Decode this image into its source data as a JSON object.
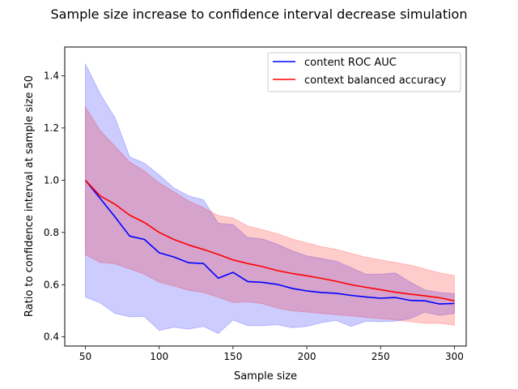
{
  "chart_data": {
    "type": "line",
    "title": "Sample size increase to confidence interval decrease simulation",
    "xlabel": "Sample size",
    "ylabel": "Ratio to confidence interval at sample size 50",
    "xlim": [
      36,
      308
    ],
    "ylim": [
      0.365,
      1.51
    ],
    "xticks": [
      50,
      100,
      150,
      200,
      250,
      300
    ],
    "yticks": [
      0.4,
      0.6,
      0.8,
      1.0,
      1.2,
      1.4
    ],
    "xtick_labels": [
      "50",
      "100",
      "150",
      "200",
      "250",
      "300"
    ],
    "ytick_labels": [
      "0.4",
      "0.6",
      "0.8",
      "1.0",
      "1.2",
      "1.4"
    ],
    "grid": false,
    "legend_position": "top-right",
    "x": [
      50,
      60,
      70,
      80,
      90,
      100,
      110,
      120,
      130,
      140,
      150,
      160,
      170,
      180,
      190,
      200,
      210,
      220,
      230,
      240,
      250,
      260,
      270,
      280,
      290,
      300
    ],
    "series": [
      {
        "name": "content ROC AUC",
        "color": "#0000ff",
        "band_color": "#0000ff",
        "values": [
          1.0,
          0.93,
          0.86,
          0.786,
          0.773,
          0.722,
          0.706,
          0.684,
          0.681,
          0.625,
          0.647,
          0.612,
          0.609,
          0.601,
          0.586,
          0.576,
          0.57,
          0.567,
          0.559,
          0.553,
          0.548,
          0.551,
          0.54,
          0.538,
          0.526,
          0.528
        ],
        "upper": [
          1.445,
          1.33,
          1.24,
          1.09,
          1.065,
          1.02,
          0.97,
          0.94,
          0.925,
          0.835,
          0.83,
          0.78,
          0.775,
          0.755,
          0.73,
          0.71,
          0.7,
          0.69,
          0.665,
          0.64,
          0.64,
          0.645,
          0.61,
          0.58,
          0.57,
          0.565
        ],
        "lower": [
          0.552,
          0.53,
          0.49,
          0.477,
          0.478,
          0.425,
          0.437,
          0.43,
          0.44,
          0.413,
          0.465,
          0.443,
          0.443,
          0.447,
          0.435,
          0.44,
          0.455,
          0.463,
          0.44,
          0.46,
          0.458,
          0.46,
          0.47,
          0.495,
          0.482,
          0.49
        ]
      },
      {
        "name": "context balanced accuracy",
        "color": "#ff0000",
        "band_color": "#ff0000",
        "values": [
          1.0,
          0.94,
          0.908,
          0.866,
          0.838,
          0.8,
          0.773,
          0.752,
          0.735,
          0.716,
          0.695,
          0.681,
          0.669,
          0.654,
          0.643,
          0.634,
          0.624,
          0.613,
          0.6,
          0.59,
          0.581,
          0.571,
          0.564,
          0.557,
          0.55,
          0.538
        ],
        "upper": [
          1.28,
          1.19,
          1.13,
          1.07,
          1.035,
          0.99,
          0.955,
          0.92,
          0.895,
          0.865,
          0.855,
          0.825,
          0.81,
          0.795,
          0.775,
          0.76,
          0.745,
          0.735,
          0.72,
          0.705,
          0.695,
          0.685,
          0.675,
          0.66,
          0.645,
          0.635
        ],
        "lower": [
          0.715,
          0.685,
          0.68,
          0.66,
          0.64,
          0.61,
          0.595,
          0.578,
          0.57,
          0.552,
          0.532,
          0.535,
          0.527,
          0.51,
          0.5,
          0.495,
          0.49,
          0.485,
          0.48,
          0.475,
          0.47,
          0.465,
          0.458,
          0.452,
          0.452,
          0.445
        ]
      }
    ]
  }
}
